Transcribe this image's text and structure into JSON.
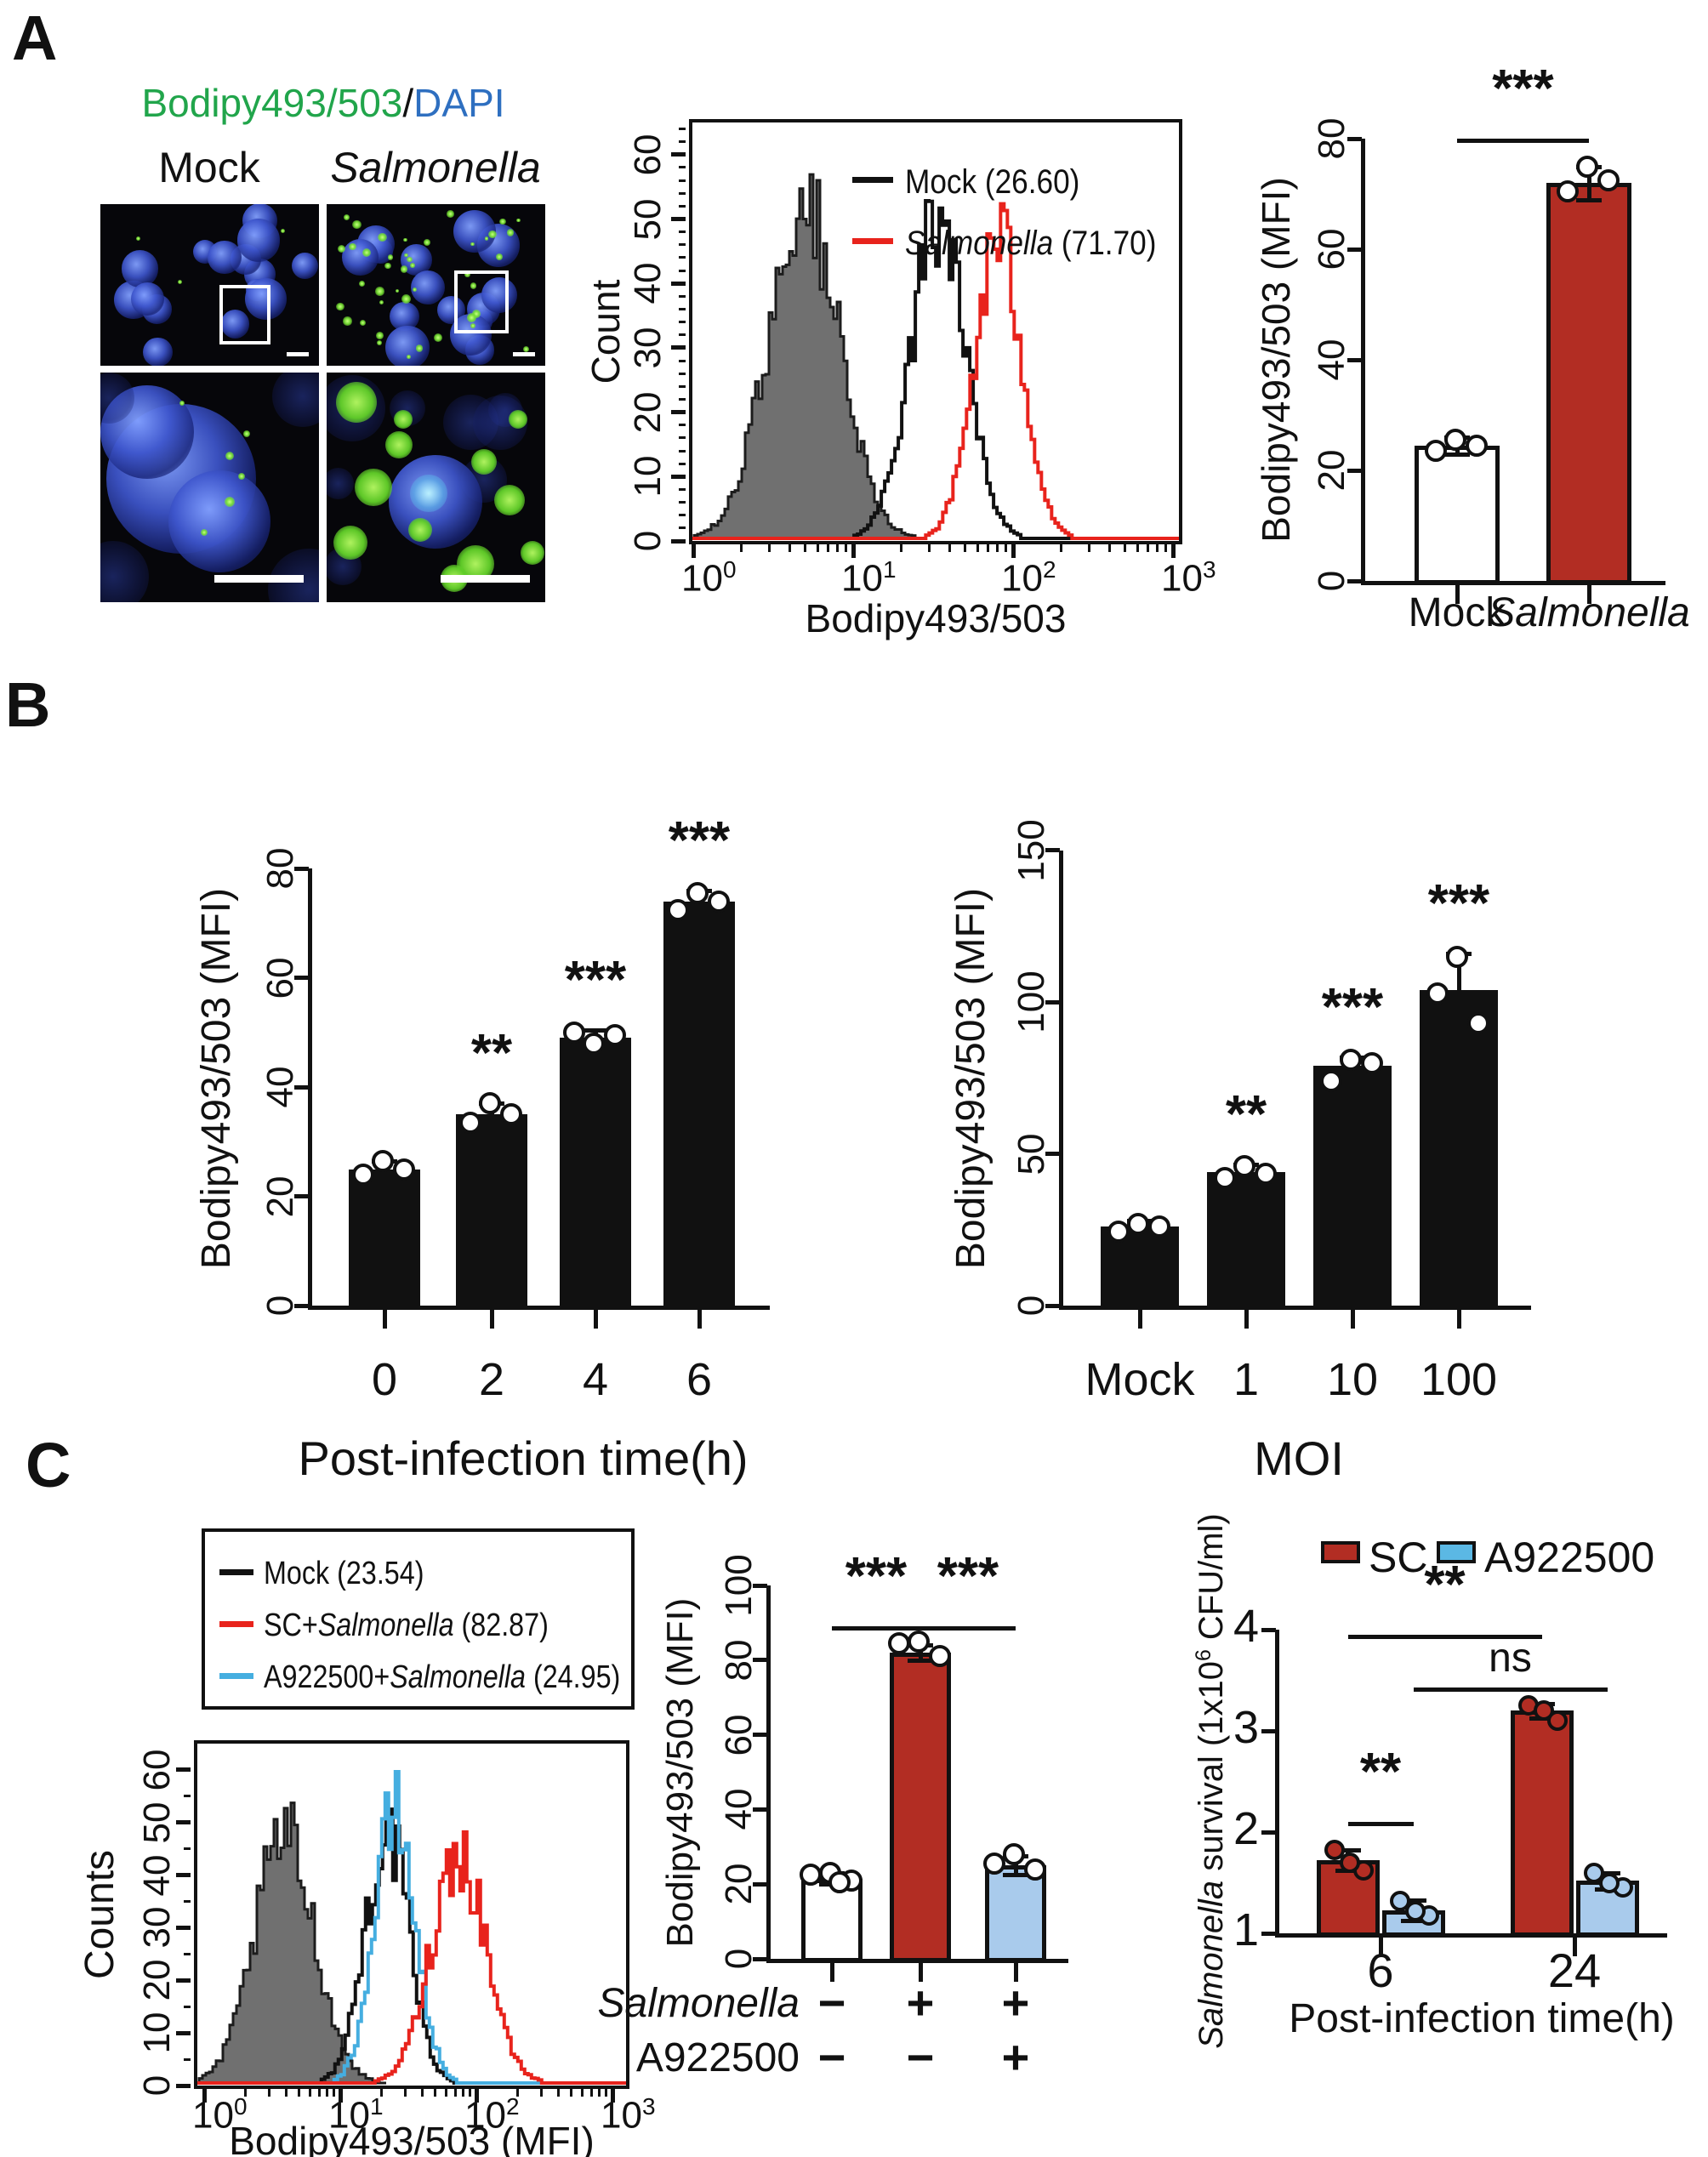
{
  "figure": {
    "panel_a_label": "A",
    "panel_b_label": "B",
    "panel_c_label": "C"
  },
  "panel_a": {
    "microscopy": {
      "title_segments": [
        {
          "t": "Bodipy493/503",
          "color": "#21A54B"
        },
        {
          "t": "/",
          "color": "#111111"
        },
        {
          "t": "DAPI",
          "color": "#2E6FC0"
        }
      ],
      "column_labels": [
        {
          "t": "Mock",
          "italic": false
        },
        {
          "t": "Salmonella",
          "italic": true
        }
      ]
    }
  },
  "panel_c": {
    "flow_legend": [
      {
        "color": "#111111",
        "segments": [
          {
            "t": "Mock (23.54)"
          }
        ]
      },
      {
        "color": "#E8231C",
        "segments": [
          {
            "t": "SC+"
          },
          {
            "t": "Salmonella",
            "italic": true
          },
          {
            "t": " (82.87)"
          }
        ]
      },
      {
        "color": "#45AEE0",
        "segments": [
          {
            "t": "A922500+"
          },
          {
            "t": "Salmonella",
            "italic": true
          },
          {
            "t": " (24.95)"
          }
        ]
      }
    ],
    "survival_legend": [
      {
        "label": "SC",
        "color": "#B22D23"
      },
      {
        "label": "A922500",
        "color": "#5BB8E4"
      }
    ]
  },
  "chart_data": [
    {
      "id": "a_flow",
      "type": "area",
      "subtype": "flow-cytometry-histogram",
      "ylabel": "Count",
      "ylim": [
        0,
        65
      ],
      "yticks": [
        0,
        10,
        20,
        30,
        40,
        50,
        60
      ],
      "xlabel": "Bodipy493/503",
      "xscale": "log",
      "xtick_exponents": [
        "0",
        "1",
        "2",
        "3"
      ],
      "legend_position": "top-right",
      "legend": [
        {
          "color": "#111111",
          "segments": [
            {
              "t": "Mock (26.60)"
            }
          ]
        },
        {
          "color": "#E8231C",
          "segments": [
            {
              "t": "Salmonella",
              "italic": true
            },
            {
              "t": " (71.70)"
            }
          ]
        }
      ],
      "series": [
        {
          "name": "unstained-control",
          "stroke": "#1C1C1C",
          "fill": "#707070",
          "peak_log10_x": 0.68,
          "sigma_log10": 0.22,
          "peak_count": 52
        },
        {
          "name": "Mock",
          "stroke": "#111111",
          "fill": "none",
          "peak_log10_x": 1.52,
          "sigma_log10": 0.17,
          "peak_count": 50
        },
        {
          "name": "Salmonella",
          "stroke": "#E8231C",
          "fill": "none",
          "peak_log10_x": 1.9,
          "sigma_log10": 0.15,
          "peak_count": 46
        }
      ]
    },
    {
      "id": "a_bar",
      "type": "bar",
      "ylabel": "Bodipy493/503 (MFI)",
      "ylim": [
        0,
        80
      ],
      "yticks": [
        0,
        20,
        40,
        60,
        80
      ],
      "categories": [
        {
          "t": "Mock",
          "italic": false
        },
        {
          "t": "Salmonella",
          "italic": true
        }
      ],
      "values": [
        24.5,
        72
      ],
      "errors": [
        1.5,
        3
      ],
      "points": [
        [
          25.5,
          23.5,
          24.5
        ],
        [
          75,
          70.5,
          72.5
        ]
      ],
      "bar_fills": [
        "#FFFFFF",
        "#B22D23"
      ],
      "sig": [
        {
          "from": 0,
          "to": 1,
          "label": "***",
          "level": 80
        }
      ]
    },
    {
      "id": "b_time",
      "type": "bar",
      "ylabel": "Bodipy493/503 (MFI)",
      "ylim": [
        0,
        80
      ],
      "yticks": [
        0,
        20,
        40,
        60,
        80
      ],
      "xlabel": "Post-infection time(h)",
      "categories": [
        {
          "t": "0"
        },
        {
          "t": "2"
        },
        {
          "t": "4"
        },
        {
          "t": "6"
        }
      ],
      "values": [
        25,
        35,
        49,
        74
      ],
      "errors": [
        1.5,
        2,
        1.5,
        2
      ],
      "points": [
        [
          26.5,
          24,
          25
        ],
        [
          37,
          33.5,
          35
        ],
        [
          48,
          50,
          49.5
        ],
        [
          75.5,
          72.5,
          74
        ]
      ],
      "bar_fills": [
        "#111111",
        "#111111",
        "#111111",
        "#111111"
      ],
      "sig": [
        {
          "bar": 1,
          "label": "**"
        },
        {
          "bar": 2,
          "label": "***"
        },
        {
          "bar": 3,
          "label": "***"
        }
      ]
    },
    {
      "id": "b_moi",
      "type": "bar",
      "ylabel": "Bodipy493/503 (MFI)",
      "ylim": [
        0,
        150
      ],
      "yticks": [
        0,
        50,
        100,
        150
      ],
      "xlabel": "MOI",
      "categories": [
        {
          "t": "Mock"
        },
        {
          "t": "1"
        },
        {
          "t": "10"
        },
        {
          "t": "100"
        }
      ],
      "values": [
        26,
        44,
        79,
        104
      ],
      "errors": [
        2,
        2.5,
        3,
        12
      ],
      "points": [
        [
          27,
          24.5,
          26
        ],
        [
          46,
          42,
          43.5
        ],
        [
          81,
          74,
          80
        ],
        [
          115,
          103,
          93
        ]
      ],
      "bar_fills": [
        "#111111",
        "#111111",
        "#111111",
        "#111111"
      ],
      "sig": [
        {
          "bar": 1,
          "label": "**"
        },
        {
          "bar": 2,
          "label": "***"
        },
        {
          "bar": 3,
          "label": "***"
        }
      ]
    },
    {
      "id": "c_flow",
      "type": "area",
      "subtype": "flow-cytometry-histogram",
      "ylabel": "Counts",
      "ylim": [
        0,
        65
      ],
      "yticks": [
        0,
        10,
        20,
        30,
        40,
        50,
        60
      ],
      "xlabel": "Bodipy493/503 (MFI)",
      "xscale": "log",
      "xtick_exponents": [
        "0",
        "1",
        "2",
        "3"
      ],
      "series": [
        {
          "name": "unstained-control",
          "stroke": "#1C1C1C",
          "fill": "#707070",
          "peak_log10_x": 0.58,
          "sigma_log10": 0.22,
          "peak_count": 47
        },
        {
          "name": "Mock",
          "stroke": "#111111",
          "fill": "none",
          "peak_log10_x": 1.33,
          "sigma_log10": 0.16,
          "peak_count": 48
        },
        {
          "name": "A922500+Salmonella",
          "stroke": "#45AEE0",
          "fill": "none",
          "peak_log10_x": 1.39,
          "sigma_log10": 0.15,
          "peak_count": 51
        },
        {
          "name": "SC+Salmonella",
          "stroke": "#E8231C",
          "fill": "none",
          "peak_log10_x": 1.86,
          "sigma_log10": 0.2,
          "peak_count": 44
        }
      ]
    },
    {
      "id": "c_mfi",
      "type": "bar",
      "ylabel": "Bodipy493/503 (MFI)",
      "ylim": [
        0,
        100
      ],
      "yticks": [
        0,
        20,
        40,
        60,
        80,
        100
      ],
      "values": [
        21.5,
        82,
        25
      ],
      "errors": [
        1.5,
        2,
        2.5
      ],
      "points": [
        [
          23,
          22.5,
          21,
          20.5
        ],
        [
          85,
          84.5,
          81
        ],
        [
          28,
          25.5,
          24
        ]
      ],
      "bar_fills": [
        "#FFFFFF",
        "#B22D23",
        "#A9CBEC"
      ],
      "sig": [
        {
          "from": 0,
          "to": 1,
          "label": "***",
          "level": 89
        },
        {
          "from": 1,
          "to": 2,
          "label": "***",
          "level": 89
        }
      ],
      "condition_rows": [
        {
          "label": {
            "t": "Salmonella",
            "italic": true
          },
          "symbols": [
            "−",
            "+",
            "+"
          ]
        },
        {
          "label": {
            "t": "A922500",
            "italic": false
          },
          "symbols": [
            "−",
            "−",
            "+"
          ]
        }
      ]
    },
    {
      "id": "c_surv",
      "type": "bar",
      "grouped": true,
      "ylabel_segments": [
        {
          "t": "Salmonella",
          "italic": true
        },
        {
          "t": " survival (1x10"
        },
        {
          "t": "6",
          "sup": true
        },
        {
          "t": " CFU/ml)"
        }
      ],
      "ylim": [
        1,
        4
      ],
      "yticks": [
        1,
        2,
        3,
        4
      ],
      "xlabel": "Post-infection time(h)",
      "groups": [
        {
          "t": "6"
        },
        {
          "t": "24"
        }
      ],
      "series": [
        {
          "name": "SC",
          "fill": "#B22D23",
          "point_fill": "#B22D23",
          "values": [
            1.72,
            3.2
          ],
          "errors": [
            0.1,
            0.07
          ],
          "points": [
            [
              1.82,
              1.62,
              1.7
            ],
            [
              3.25,
              3.1,
              3.2
            ]
          ]
        },
        {
          "name": "A922500",
          "fill": "#A9CBEC",
          "point_fill": "#A9CBEC",
          "values": [
            1.23,
            1.52
          ],
          "errors": [
            0.1,
            0.08
          ],
          "points": [
            [
              1.32,
              1.18,
              1.22
            ],
            [
              1.6,
              1.45,
              1.5
            ]
          ]
        }
      ],
      "sig": [
        {
          "label": "**",
          "a": {
            "group": 0,
            "series": 0
          },
          "b": {
            "group": 1,
            "series": 0
          },
          "level": 3.95
        },
        {
          "label": "ns",
          "a": {
            "group": 0,
            "series": 1
          },
          "b": {
            "group": 1,
            "series": 1
          },
          "level": 3.43
        },
        {
          "label": "**",
          "a": {
            "group": 0,
            "series": 0
          },
          "b": {
            "group": 0,
            "series": 1
          },
          "level": 2.1
        }
      ]
    }
  ]
}
